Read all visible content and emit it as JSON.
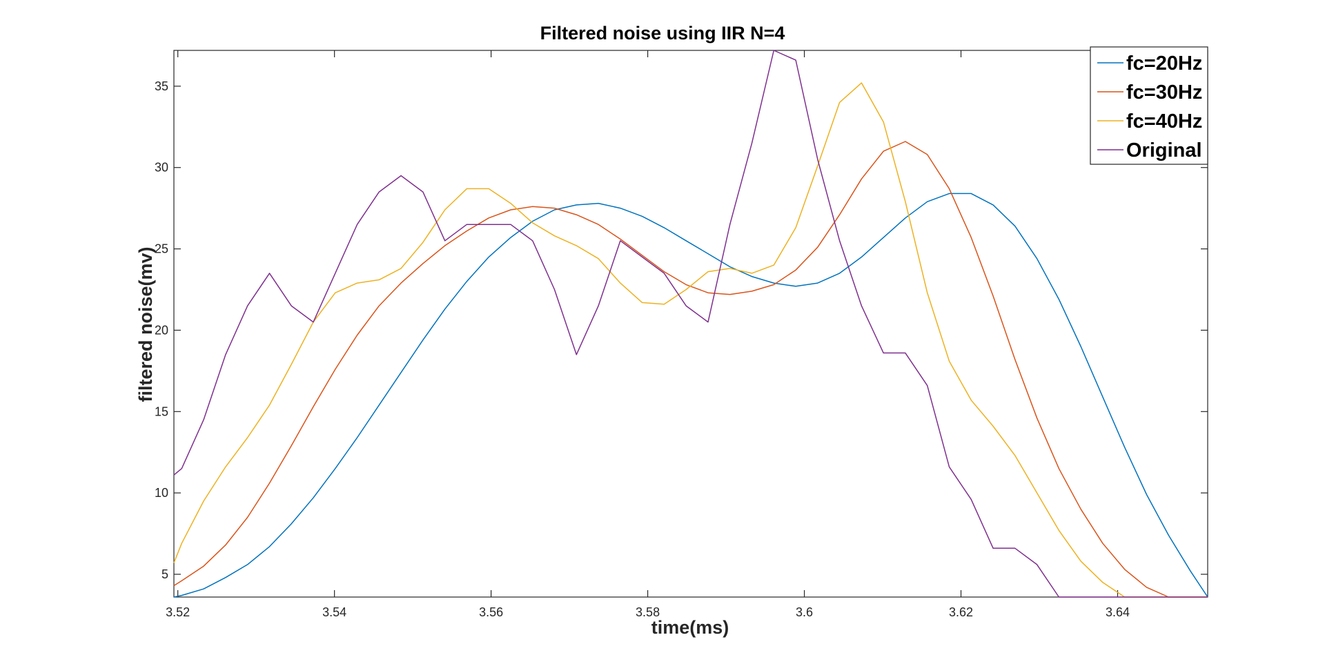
{
  "chart_data": {
    "type": "line",
    "title": "Filtered noise using IIR N=4",
    "xlabel": "time(ms)",
    "ylabel": "filtered noise(mv)",
    "xlim": [
      3.5195,
      3.6515
    ],
    "ylim": [
      3.6,
      37.2
    ],
    "x_ticks": [
      3.52,
      3.54,
      3.56,
      3.58,
      3.6,
      3.62,
      3.64
    ],
    "x_tick_labels": [
      "3.52",
      "3.54",
      "3.56",
      "3.58",
      "3.6",
      "3.62",
      "3.64"
    ],
    "y_ticks": [
      5,
      10,
      15,
      20,
      25,
      30,
      35
    ],
    "y_tick_labels": [
      "5",
      "10",
      "15",
      "20",
      "25",
      "30",
      "35"
    ],
    "grid": false,
    "legend_position": "top-right",
    "x": [
      3.5195,
      3.5205,
      3.5233,
      3.5261,
      3.5289,
      3.5317,
      3.5345,
      3.5373,
      3.5401,
      3.5429,
      3.5457,
      3.5485,
      3.5513,
      3.5541,
      3.5569,
      3.5597,
      3.5625,
      3.5653,
      3.5681,
      3.5709,
      3.5737,
      3.5765,
      3.5793,
      3.5821,
      3.5849,
      3.5877,
      3.5905,
      3.5933,
      3.5961,
      3.5989,
      3.6017,
      3.6045,
      3.6073,
      3.6101,
      3.6129,
      3.6157,
      3.6185,
      3.6213,
      3.6241,
      3.6269,
      3.6297,
      3.6325,
      3.6353,
      3.6381,
      3.6409,
      3.6437,
      3.6465,
      3.6493,
      3.6515
    ],
    "series": [
      {
        "name": "fc=20Hz",
        "color": "#0072BD",
        "values": [
          3.5,
          3.7,
          4.1,
          4.8,
          5.6,
          6.7,
          8.1,
          9.7,
          11.5,
          13.4,
          15.4,
          17.4,
          19.4,
          21.3,
          23.0,
          24.5,
          25.7,
          26.7,
          27.4,
          27.7,
          27.8,
          27.5,
          27.0,
          26.3,
          25.5,
          24.7,
          23.9,
          23.3,
          22.9,
          22.7,
          22.9,
          23.5,
          24.5,
          25.7,
          26.9,
          27.9,
          28.4,
          28.4,
          27.7,
          26.4,
          24.4,
          21.9,
          19.0,
          15.9,
          12.8,
          9.9,
          7.4,
          5.2,
          3.6
        ]
      },
      {
        "name": "fc=30Hz",
        "color": "#D95319",
        "values": [
          4.3,
          4.6,
          5.5,
          6.8,
          8.5,
          10.6,
          12.9,
          15.3,
          17.6,
          19.7,
          21.5,
          22.9,
          24.1,
          25.2,
          26.1,
          26.9,
          27.4,
          27.6,
          27.5,
          27.1,
          26.5,
          25.6,
          24.6,
          23.6,
          22.8,
          22.3,
          22.2,
          22.4,
          22.8,
          23.7,
          25.1,
          27.1,
          29.3,
          31.0,
          31.6,
          30.8,
          28.7,
          25.7,
          22.1,
          18.2,
          14.6,
          11.5,
          9.0,
          6.9,
          5.3,
          4.2,
          3.6,
          3.5,
          3.5
        ]
      },
      {
        "name": "fc=40Hz",
        "color": "#EDB120",
        "values": [
          5.7,
          6.9,
          9.5,
          11.6,
          13.4,
          15.4,
          17.9,
          20.5,
          22.3,
          22.9,
          23.1,
          23.8,
          25.4,
          27.4,
          28.7,
          28.7,
          27.8,
          26.6,
          25.8,
          25.2,
          24.4,
          22.9,
          21.7,
          21.6,
          22.5,
          23.6,
          23.8,
          23.5,
          24.0,
          26.3,
          30.1,
          34.0,
          35.2,
          32.8,
          27.9,
          22.3,
          18.1,
          15.7,
          14.1,
          12.3,
          10.0,
          7.7,
          5.8,
          4.5,
          3.6,
          3.5,
          3.5,
          3.5,
          3.5
        ]
      },
      {
        "name": "Original",
        "color": "#7E2F8E",
        "values": [
          11.1,
          11.5,
          14.5,
          18.5,
          21.5,
          23.5,
          21.5,
          20.5,
          23.5,
          26.5,
          28.5,
          29.5,
          28.5,
          25.5,
          26.5,
          26.5,
          26.5,
          25.5,
          22.5,
          18.5,
          21.5,
          25.5,
          24.5,
          23.5,
          21.5,
          20.5,
          26.5,
          31.5,
          37.5,
          36.6,
          30.5,
          25.5,
          21.5,
          18.6,
          18.6,
          16.6,
          11.6,
          9.6,
          6.6,
          6.6,
          5.6,
          3.5,
          3.5,
          3.5,
          3.5,
          3.5,
          3.5,
          3.6,
          3.6
        ]
      }
    ]
  }
}
